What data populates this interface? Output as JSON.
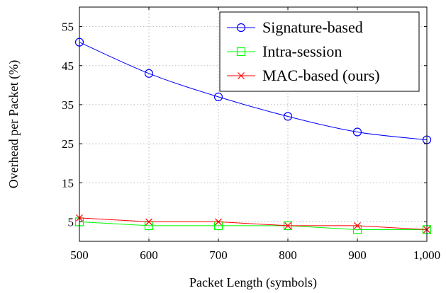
{
  "chart_data": {
    "type": "line",
    "xlabel": "Packet Length (symbols)",
    "ylabel": "Overhead per Packet (%)",
    "x": [
      500,
      600,
      700,
      800,
      900,
      1000
    ],
    "x_tick_labels": [
      "500",
      "600",
      "700",
      "800",
      "900",
      "1,000"
    ],
    "y_ticks": [
      5,
      15,
      25,
      35,
      45,
      55
    ],
    "y_tick_labels": [
      "5",
      "15",
      "25",
      "35",
      "45",
      "55"
    ],
    "xlim": [
      500,
      1000
    ],
    "ylim": [
      0,
      60
    ],
    "grid": true,
    "legend_position": "top-right",
    "series": [
      {
        "name": "Signature-based",
        "values": [
          51,
          43,
          37,
          32,
          28,
          26
        ],
        "color": "#0000ff",
        "marker": "circle"
      },
      {
        "name": "Intra-session",
        "values": [
          5,
          4,
          4,
          4,
          3,
          3
        ],
        "color": "#00ff00",
        "marker": "square"
      },
      {
        "name": "MAC-based (ours)",
        "values": [
          6,
          5,
          5,
          4,
          4,
          3
        ],
        "color": "#ff0000",
        "marker": "x"
      }
    ]
  }
}
